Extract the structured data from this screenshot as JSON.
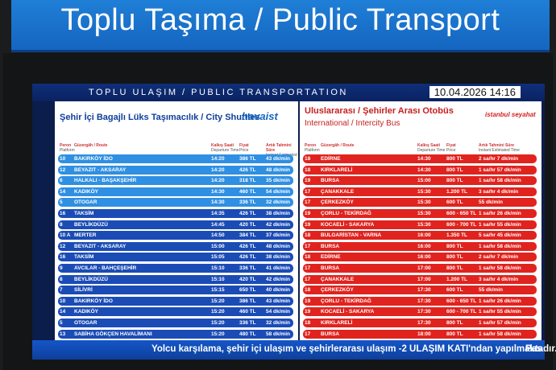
{
  "sign": {
    "title": "Toplu Taşıma / Public Transport"
  },
  "board": {
    "title": "TOPLU ULAŞIM / PUBLIC TRANSPORTATION",
    "datetime": "10.04.2026 14:16"
  },
  "left_panel": {
    "title": "Şehir İçi Bagajlı Lüks Taşımacılık / City Shuttles",
    "logo": "havaist",
    "columns": [
      {
        "tr": "Peron",
        "en": "Platform"
      },
      {
        "tr": "Güzergâh / Route",
        "en": ""
      },
      {
        "tr": "Kalkış Saati",
        "en": "Departure Time"
      },
      {
        "tr": "Fiyat",
        "en": "Price"
      },
      {
        "tr": "Artık Tahmini Süre",
        "en": "Instant Estimated Time"
      }
    ],
    "rows": [
      [
        "10",
        "BAKIRKÖY İDO",
        "14:20",
        "386 TL",
        "43 dk/min"
      ],
      [
        "12",
        "BEYAZIT - AKSARAY",
        "14:20",
        "426 TL",
        "48 dk/min"
      ],
      [
        "6",
        "HALKALI - BAŞAKŞEHİR",
        "14:20",
        "318 TL",
        "35 dk/min"
      ],
      [
        "14",
        "KADIKÖY",
        "14:30",
        "460 TL",
        "54 dk/min"
      ],
      [
        "5",
        "OTOGAR",
        "14:30",
        "336 TL",
        "32 dk/min"
      ],
      [
        "16",
        "TAKSİM",
        "14:35",
        "426 TL",
        "38 dk/min"
      ],
      [
        "8",
        "BEYLİKDÜZÜ",
        "14:45",
        "420 TL",
        "42 dk/min"
      ],
      [
        "10 A",
        "MERTER",
        "14:50",
        "384 TL",
        "37 dk/min"
      ],
      [
        "12",
        "BEYAZIT - AKSARAY",
        "15:00",
        "426 TL",
        "48 dk/min"
      ],
      [
        "16",
        "TAKSİM",
        "15:05",
        "426 TL",
        "38 dk/min"
      ],
      [
        "9",
        "AVCILAR - BAHÇEŞEHİR",
        "15:10",
        "336 TL",
        "41 dk/min"
      ],
      [
        "8",
        "BEYLİKDÜZÜ",
        "15:10",
        "420 TL",
        "42 dk/min"
      ],
      [
        "7",
        "SİLİVRİ",
        "15:15",
        "650 TL",
        "40 dk/min"
      ],
      [
        "10",
        "BAKIRKÖY İDO",
        "15:20",
        "386 TL",
        "43 dk/min"
      ],
      [
        "14",
        "KADIKÖY",
        "15:20",
        "460 TL",
        "54 dk/min"
      ],
      [
        "5",
        "OTOGAR",
        "15:20",
        "336 TL",
        "32 dk/min"
      ],
      [
        "13",
        "SABİHA GÖKÇEN HAVALİMANI",
        "15:20",
        "480 TL",
        "58 dk/min"
      ]
    ]
  },
  "right_panel": {
    "title": "Uluslararası / Şehirler Arası Otobüs",
    "subtitle": "International / Intercity Bus",
    "logo": "istanbul seyahat",
    "columns": [
      {
        "tr": "Peron",
        "en": "Platform"
      },
      {
        "tr": "Güzergâh / Route",
        "en": ""
      },
      {
        "tr": "Kalkış Saati",
        "en": "Departure Time"
      },
      {
        "tr": "Fiyat",
        "en": "Price"
      },
      {
        "tr": "Artık Tahmini Süre",
        "en": "Instant Estimated Time"
      }
    ],
    "rows": [
      [
        "18",
        "EDİRNE",
        "14:30",
        "800 TL",
        "2 sa/hr 7 dk/min"
      ],
      [
        "18",
        "KIRKLARELİ",
        "14:30",
        "800 TL",
        "1 sa/hr 57 dk/min"
      ],
      [
        "19",
        "BURSA",
        "15:00",
        "800 TL",
        "1 sa/hr 58 dk/min"
      ],
      [
        "17",
        "ÇANAKKALE",
        "15:30",
        "1.200 TL",
        "3 sa/hr 4 dk/min"
      ],
      [
        "17",
        "ÇERKEZKÖY",
        "15:30",
        "600 TL",
        "55 dk/min"
      ],
      [
        "19",
        "ÇORLU - TEKİRDAĞ",
        "15:30",
        "600 - 650 TL",
        "1 sa/hr 26 dk/min"
      ],
      [
        "19",
        "KOCAELİ - SAKARYA",
        "15:30",
        "600 - 700 TL",
        "1 sa/hr 55 dk/min"
      ],
      [
        "18",
        "BULGARİSTAN - VARNA",
        "16:00",
        "1.350 TL",
        "5 sa/hr 45 dk/min"
      ],
      [
        "17",
        "BURSA",
        "16:00",
        "800 TL",
        "1 sa/hr 58 dk/min"
      ],
      [
        "18",
        "EDİRNE",
        "16:00",
        "800 TL",
        "2 sa/hr 7 dk/min"
      ],
      [
        "17",
        "BURSA",
        "17:00",
        "800 TL",
        "1 sa/hr 58 dk/min"
      ],
      [
        "17",
        "ÇANAKKALE",
        "17:00",
        "1.200 TL",
        "3 sa/hr 4 dk/min"
      ],
      [
        "18",
        "ÇERKEZKÖY",
        "17:30",
        "600 TL",
        "55 dk/min"
      ],
      [
        "19",
        "ÇORLU - TEKİRDAĞ",
        "17:30",
        "600 - 650 TL",
        "1 sa/hr 26 dk/min"
      ],
      [
        "19",
        "KOCAELİ - SAKARYA",
        "17:30",
        "600 - 700 TL",
        "1 sa/hr 55 dk/min"
      ],
      [
        "18",
        "KIRKLARELİ",
        "17:30",
        "800 TL",
        "1 sa/hr 57 dk/min"
      ],
      [
        "17",
        "BURSA",
        "18:00",
        "800 TL",
        "1 sa/hr 58 dk/min"
      ]
    ]
  },
  "ticker": {
    "text": "Yolcu karşılama, şehir içi ulaşım ve şehirlerarası ulaşım -2 ULAŞIM KATI'ndan yapılmaktadır.",
    "next": "Pas"
  }
}
